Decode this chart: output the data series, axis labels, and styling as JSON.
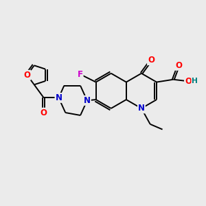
{
  "background_color": "#ebebeb",
  "bond_color": "#000000",
  "atom_colors": {
    "N": "#0000cc",
    "O": "#ff0000",
    "F": "#cc00cc",
    "OH": "#008080",
    "C": "#000000"
  },
  "figsize": [
    3.0,
    3.0
  ],
  "dpi": 100,
  "bond_lw": 1.4,
  "double_sep": 2.8,
  "font_size": 8.5
}
